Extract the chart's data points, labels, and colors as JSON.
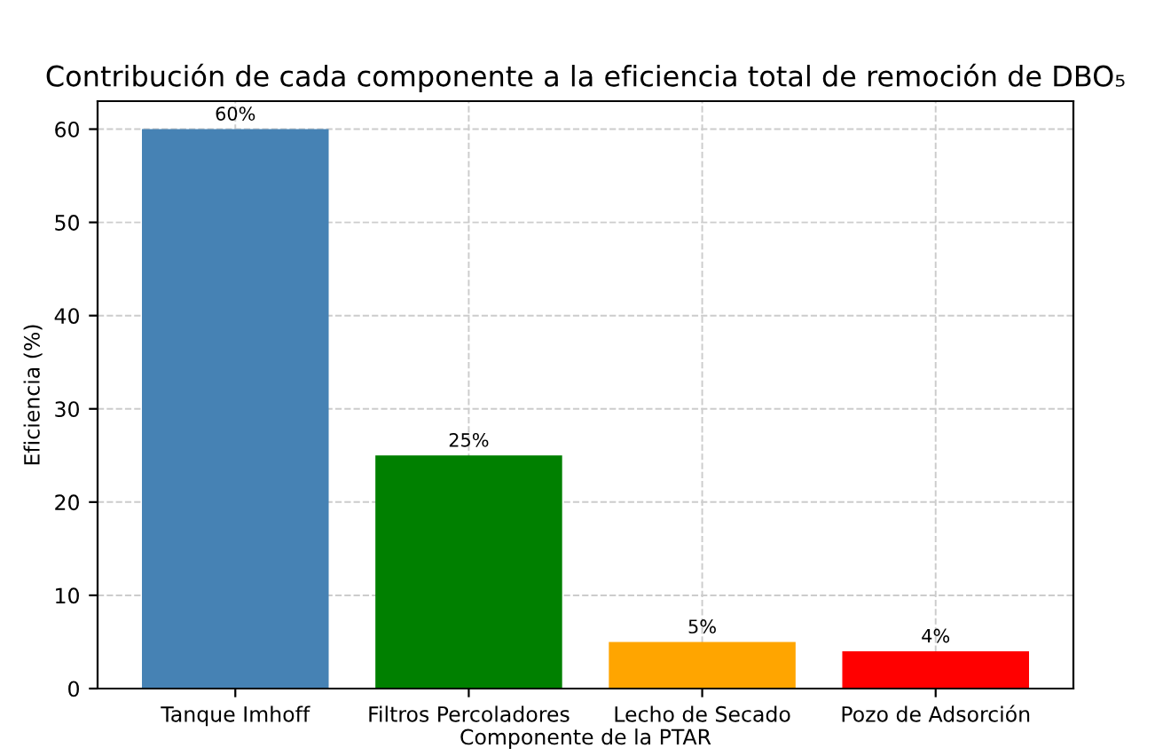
{
  "chart_data": {
    "type": "bar",
    "title": "Contribución de cada componente a la eficiencia total de remoción de DBO₅",
    "xlabel": "Componente de la PTAR",
    "ylabel": "Eficiencia (%)",
    "categories": [
      "Tanque Imhoff",
      "Filtros Percoladores",
      "Lecho de Secado",
      "Pozo de Adsorción"
    ],
    "values": [
      60,
      25,
      5,
      4
    ],
    "colors": [
      "#4682b4",
      "#008000",
      "#ffa500",
      "#ff0000"
    ],
    "value_labels": [
      "60%",
      "25%",
      "5%",
      "4%"
    ],
    "ylim": [
      0,
      63
    ],
    "yticks": [
      0,
      10,
      20,
      30,
      40,
      50,
      60
    ],
    "grid": true
  }
}
